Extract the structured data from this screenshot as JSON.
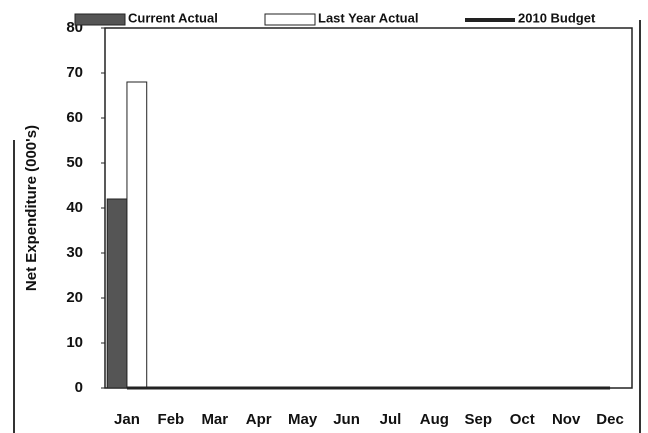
{
  "chart_data": {
    "type": "bar",
    "y_label": "Net Expenditure (000's)",
    "categories": [
      "Jan",
      "Feb",
      "Mar",
      "Apr",
      "May",
      "Jun",
      "Jul",
      "Aug",
      "Sep",
      "Oct",
      "Nov",
      "Dec"
    ],
    "series": [
      {
        "name": "Current Actual",
        "type": "bar",
        "color": "#555555",
        "values": [
          42,
          null,
          null,
          null,
          null,
          null,
          null,
          null,
          null,
          null,
          null,
          null
        ]
      },
      {
        "name": "Last Year Actual",
        "type": "bar",
        "color": "#ffffff",
        "values": [
          68,
          null,
          null,
          null,
          null,
          null,
          null,
          null,
          null,
          null,
          null,
          null
        ]
      },
      {
        "name": "2010 Budget",
        "type": "line",
        "color": "#222222",
        "values": [
          0,
          0,
          0,
          0,
          0,
          0,
          0,
          0,
          0,
          0,
          0,
          0
        ]
      }
    ],
    "ylim": [
      0,
      80
    ],
    "yticks": [
      0,
      10,
      20,
      30,
      40,
      50,
      60,
      70,
      80
    ]
  }
}
